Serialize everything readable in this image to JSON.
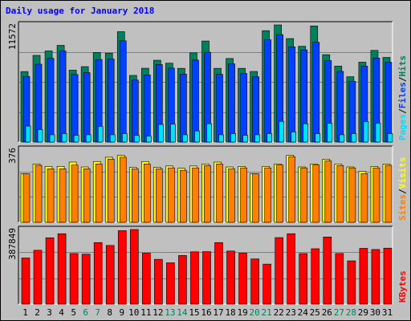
{
  "title": "Daily usage for January 2018",
  "colors": {
    "hits": "#00805c",
    "files": "#0040ff",
    "pages": "#00e0ff",
    "visits": "#ffff00",
    "sites": "#ff8000",
    "kbytes": "#ff0000",
    "title": "#0000ff",
    "weekend": "#00805c",
    "weekday": "#000000",
    "panel_bg": "#c0c0c0",
    "grid": "#808080"
  },
  "chart_data": [
    {
      "type": "bar",
      "name": "hits-files-pages",
      "max_label": "11572",
      "ymax": 11572,
      "legend": [
        "Pages",
        "/",
        "Files",
        "/",
        "Hits"
      ],
      "categories": [
        "1",
        "2",
        "3",
        "4",
        "5",
        "6",
        "7",
        "8",
        "9",
        "10",
        "11",
        "12",
        "13",
        "14",
        "15",
        "16",
        "17",
        "18",
        "19",
        "20",
        "21",
        "22",
        "23",
        "24",
        "25",
        "26",
        "27",
        "28",
        "29",
        "30",
        "31"
      ],
      "weekend_days": [
        6,
        7,
        13,
        14,
        20,
        21,
        27,
        28
      ],
      "series": [
        {
          "name": "Hits",
          "values": [
            6960,
            8560,
            9000,
            9550,
            7100,
            7450,
            8850,
            8780,
            10900,
            6580,
            7290,
            8080,
            7790,
            7280,
            8810,
            9980,
            7280,
            8250,
            7280,
            6970,
            11000,
            11570,
            10220,
            9460,
            11470,
            8630,
            7500,
            6450,
            7890,
            9050,
            8360
          ]
        },
        {
          "name": "Files",
          "values": [
            6480,
            7690,
            8270,
            9000,
            6670,
            6850,
            8150,
            8200,
            10000,
            6120,
            6630,
            7650,
            7300,
            6710,
            8090,
            8870,
            6690,
            7730,
            6770,
            6450,
            10100,
            10610,
            9400,
            9100,
            9850,
            8040,
            6980,
            6000,
            7500,
            8300,
            7880
          ]
        },
        {
          "name": "Pages",
          "values": [
            1580,
            1230,
            720,
            840,
            670,
            720,
            1540,
            720,
            840,
            670,
            590,
            1740,
            1770,
            720,
            1100,
            1810,
            720,
            840,
            670,
            720,
            840,
            2050,
            1000,
            1810,
            840,
            1860,
            720,
            840,
            2020,
            1860,
            840
          ]
        }
      ]
    },
    {
      "type": "bar",
      "name": "visits-sites",
      "max_label": "376",
      "ymax": 376,
      "legend": [
        "Sites",
        "/",
        "Visits"
      ],
      "categories": [
        "1",
        "2",
        "3",
        "4",
        "5",
        "6",
        "7",
        "8",
        "9",
        "10",
        "11",
        "12",
        "13",
        "14",
        "15",
        "16",
        "17",
        "18",
        "19",
        "20",
        "21",
        "22",
        "23",
        "24",
        "25",
        "26",
        "27",
        "28",
        "29",
        "30",
        "31"
      ],
      "series": [
        {
          "name": "Visits",
          "values": [
            250,
            300,
            288,
            288,
            310,
            285,
            313,
            335,
            345,
            283,
            313,
            283,
            290,
            278,
            290,
            300,
            310,
            285,
            288,
            250,
            288,
            300,
            345,
            285,
            300,
            325,
            300,
            285,
            262,
            288,
            300
          ]
        },
        {
          "name": "Sites",
          "values": [
            250,
            293,
            275,
            275,
            295,
            275,
            300,
            325,
            335,
            275,
            300,
            275,
            280,
            268,
            280,
            292,
            300,
            275,
            280,
            250,
            280,
            295,
            338,
            280,
            295,
            316,
            292,
            280,
            250,
            280,
            293
          ]
        }
      ]
    },
    {
      "type": "bar",
      "name": "kbytes",
      "max_label": "387849",
      "ymax": 387849,
      "legend": [
        "KBytes"
      ],
      "categories": [
        "1",
        "2",
        "3",
        "4",
        "5",
        "6",
        "7",
        "8",
        "9",
        "10",
        "11",
        "12",
        "13",
        "14",
        "15",
        "16",
        "17",
        "18",
        "19",
        "20",
        "21",
        "22",
        "23",
        "24",
        "25",
        "26",
        "27",
        "28",
        "29",
        "30",
        "31"
      ],
      "series": [
        {
          "name": "KBytes",
          "values": [
            240000,
            280000,
            345000,
            366000,
            263000,
            260000,
            320000,
            305000,
            382000,
            388000,
            265000,
            233000,
            215000,
            253000,
            272000,
            273000,
            320000,
            276000,
            265000,
            235000,
            208000,
            346000,
            366000,
            263000,
            288000,
            349000,
            263000,
            225000,
            290000,
            284000,
            291000
          ]
        }
      ]
    }
  ]
}
